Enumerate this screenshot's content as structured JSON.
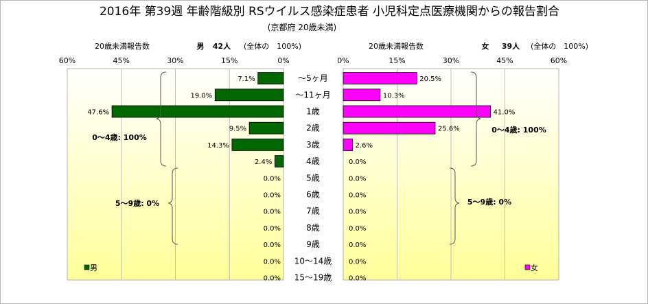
{
  "title": "2016年 第39週 年齢階級別 RSウイルス感染症患者 小児科定点医療機関からの報告割合",
  "subtitle": "(京都府 20歳未満)",
  "left_header": {
    "label": "20歳未満報告数",
    "sex": "男",
    "count": "42人",
    "total_note": "(全体の　100%)"
  },
  "right_header": {
    "label": "20歳未満報告数",
    "sex": "女",
    "count": "39人",
    "total_note": "(全体の　100%)"
  },
  "group_labels": {
    "left_0_4": "0～4歳: 100%",
    "left_5_9": "5～9歳: 0%",
    "right_0_4": "0～4歳: 100%",
    "right_5_9": "5～9歳: 0%"
  },
  "legend": {
    "male": "男",
    "female": "女"
  },
  "colors": {
    "male": "#006600",
    "female": "#ff00ff",
    "plot_gradient_top": "#ffffff",
    "plot_gradient_bottom": "#ffff99"
  },
  "chart_data": {
    "type": "bar",
    "orientation": "horizontal-butterfly",
    "categories": [
      "～5ヶ月",
      "～11ヶ月",
      "1歳",
      "2歳",
      "3歳",
      "4歳",
      "5歳",
      "6歳",
      "7歳",
      "8歳",
      "9歳",
      "10～14歳",
      "15～19歳"
    ],
    "x_ticks": [
      "60%",
      "45%",
      "30%",
      "15%",
      "0%"
    ],
    "x_ticks_right": [
      "0%",
      "15%",
      "30%",
      "45%",
      "60%"
    ],
    "xlim": [
      0,
      60
    ],
    "grid": "vertical",
    "series": [
      {
        "name": "男",
        "values": [
          7.1,
          19.0,
          47.6,
          9.5,
          14.3,
          2.4,
          0.0,
          0.0,
          0.0,
          0.0,
          0.0,
          0.0,
          0.0
        ],
        "labels": [
          "7.1%",
          "19.0%",
          "47.6%",
          "9.5%",
          "14.3%",
          "2.4%",
          "0.0%",
          "0.0%",
          "0.0%",
          "0.0%",
          "0.0%",
          "0.0%",
          "0.0%"
        ]
      },
      {
        "name": "女",
        "values": [
          20.5,
          10.3,
          41.0,
          25.6,
          2.6,
          0.0,
          0.0,
          0.0,
          0.0,
          0.0,
          0.0,
          0.0,
          0.0
        ],
        "labels": [
          "20.5%",
          "10.3%",
          "41.0%",
          "25.6%",
          "2.6%",
          "0.0%",
          "0.0%",
          "0.0%",
          "0.0%",
          "0.0%",
          "0.0%",
          "0.0%",
          "0.0%"
        ]
      }
    ]
  }
}
